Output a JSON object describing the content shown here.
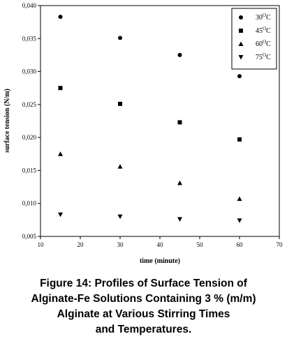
{
  "chart_data": {
    "type": "scatter",
    "xlabel": "time (minute)",
    "ylabel": "surface tension (N/m)",
    "xlim": [
      10,
      70
    ],
    "ylim": [
      0.005,
      0.04
    ],
    "xticks": [
      "10",
      "20",
      "30",
      "40",
      "50",
      "60",
      "70"
    ],
    "yticks": [
      "0,005",
      "0,010",
      "0,015",
      "0,020",
      "0,025",
      "0,030",
      "0,035",
      "0,040"
    ],
    "legend_position": "top-right",
    "grid": false,
    "x": [
      15,
      30,
      45,
      60
    ],
    "series": [
      {
        "name_base": "30",
        "name_sup": "O",
        "name_unit": "C",
        "marker": "circle",
        "values": [
          0.0383,
          0.0351,
          0.0325,
          0.0293
        ]
      },
      {
        "name_base": "45",
        "name_sup": "O",
        "name_unit": "C",
        "marker": "square",
        "values": [
          0.0275,
          0.0251,
          0.0223,
          0.0197
        ]
      },
      {
        "name_base": "60",
        "name_sup": "O",
        "name_unit": "C",
        "marker": "triangle-up",
        "values": [
          0.0175,
          0.0156,
          0.0131,
          0.0107
        ]
      },
      {
        "name_base": "75",
        "name_sup": "O",
        "name_unit": "C",
        "marker": "triangle-down",
        "values": [
          0.0083,
          0.008,
          0.0076,
          0.0074
        ]
      }
    ]
  },
  "caption": [
    "Figure 14: Profiles of Surface Tension of",
    "Alginate-Fe Solutions Containing 3 % (m/m)",
    "Alginate at Various Stirring Times",
    "and Temperatures."
  ]
}
